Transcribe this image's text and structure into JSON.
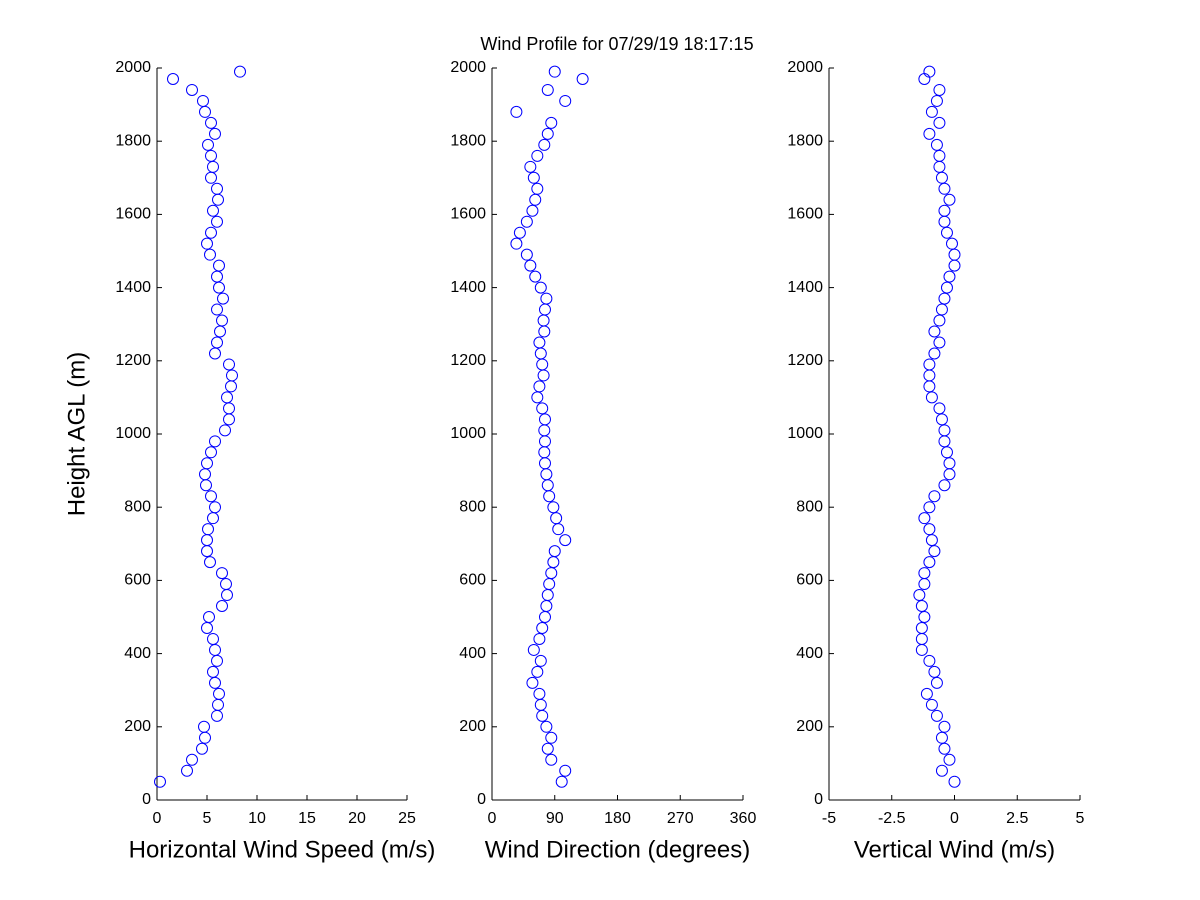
{
  "chart_data": [
    {
      "type": "scatter",
      "title": "Wind Profile for  07/29/19 18:17:15",
      "xlabel": "Horizontal Wind Speed (m/s)",
      "ylabel": "Height AGL (m)",
      "color": "#0000ff",
      "xlim": [
        0,
        25
      ],
      "xticks": [
        0,
        5,
        10,
        15,
        20,
        25
      ],
      "ylim": [
        0,
        2000
      ],
      "yticks": [
        0,
        200,
        400,
        600,
        800,
        1000,
        1200,
        1400,
        1600,
        1800,
        2000
      ],
      "x": [
        0.3,
        3.0,
        3.5,
        4.5,
        4.8,
        4.7,
        6.0,
        6.1,
        6.2,
        5.8,
        5.6,
        6.0,
        5.8,
        5.6,
        5.0,
        5.2,
        6.5,
        7.0,
        6.9,
        6.5,
        5.3,
        5.0,
        5.0,
        5.1,
        5.6,
        5.8,
        5.4,
        4.9,
        4.8,
        5.0,
        5.4,
        5.8,
        6.8,
        7.2,
        7.2,
        7.0,
        7.4,
        7.5,
        7.2,
        5.8,
        6.0,
        6.3,
        6.5,
        6.0,
        6.6,
        6.2,
        6.0,
        6.2,
        5.3,
        5.0,
        5.4,
        6.0,
        5.6,
        6.1,
        6.0,
        5.4,
        5.6,
        5.4,
        5.1,
        5.8,
        5.4,
        4.8,
        4.6,
        3.5,
        1.6,
        8.3
      ],
      "y": [
        50,
        80,
        110,
        140,
        170,
        200,
        230,
        260,
        290,
        320,
        350,
        380,
        410,
        440,
        470,
        500,
        530,
        560,
        590,
        620,
        650,
        680,
        710,
        740,
        770,
        800,
        830,
        860,
        890,
        920,
        950,
        980,
        1010,
        1040,
        1070,
        1100,
        1130,
        1160,
        1190,
        1220,
        1250,
        1280,
        1310,
        1340,
        1370,
        1400,
        1430,
        1460,
        1490,
        1520,
        1550,
        1580,
        1610,
        1640,
        1670,
        1700,
        1730,
        1760,
        1790,
        1820,
        1850,
        1880,
        1910,
        1940,
        1970,
        1990
      ]
    },
    {
      "type": "scatter",
      "xlabel": "Wind Direction (degrees)",
      "color": "#0000ff",
      "xlim": [
        0,
        360
      ],
      "xticks": [
        0,
        90,
        180,
        270,
        360
      ],
      "ylim": [
        0,
        2000
      ],
      "yticks": [
        0,
        200,
        400,
        600,
        800,
        1000,
        1200,
        1400,
        1600,
        1800,
        2000
      ],
      "x": [
        100,
        105,
        85,
        80,
        85,
        78,
        72,
        70,
        68,
        58,
        65,
        70,
        60,
        68,
        72,
        76,
        78,
        80,
        82,
        85,
        88,
        90,
        105,
        95,
        92,
        88,
        82,
        80,
        78,
        76,
        75,
        76,
        75,
        76,
        72,
        65,
        68,
        74,
        72,
        70,
        68,
        75,
        74,
        76,
        78,
        70,
        62,
        55,
        50,
        35,
        40,
        50,
        58,
        62,
        65,
        60,
        55,
        65,
        75,
        80,
        85,
        35,
        105,
        80,
        130,
        90
      ],
      "y": [
        50,
        80,
        110,
        140,
        170,
        200,
        230,
        260,
        290,
        320,
        350,
        380,
        410,
        440,
        470,
        500,
        530,
        560,
        590,
        620,
        650,
        680,
        710,
        740,
        770,
        800,
        830,
        860,
        890,
        920,
        950,
        980,
        1010,
        1040,
        1070,
        1100,
        1130,
        1160,
        1190,
        1220,
        1250,
        1280,
        1310,
        1340,
        1370,
        1400,
        1430,
        1460,
        1490,
        1520,
        1550,
        1580,
        1610,
        1640,
        1670,
        1700,
        1730,
        1760,
        1790,
        1820,
        1850,
        1880,
        1910,
        1940,
        1970,
        1990
      ]
    },
    {
      "type": "scatter",
      "xlabel": "Vertical Wind (m/s)",
      "color": "#0000ff",
      "xlim": [
        -5,
        5
      ],
      "xticks": [
        -5,
        -2.5,
        0,
        2.5,
        5
      ],
      "ylim": [
        0,
        2000
      ],
      "yticks": [
        0,
        200,
        400,
        600,
        800,
        1000,
        1200,
        1400,
        1600,
        1800,
        2000
      ],
      "x": [
        0,
        -0.5,
        -0.2,
        -0.4,
        -0.5,
        -0.4,
        -0.7,
        -0.9,
        -1.1,
        -0.7,
        -0.8,
        -1.0,
        -1.3,
        -1.3,
        -1.3,
        -1.2,
        -1.3,
        -1.4,
        -1.2,
        -1.2,
        -1.0,
        -0.8,
        -0.9,
        -1.0,
        -1.2,
        -1.0,
        -0.8,
        -0.4,
        -0.2,
        -0.2,
        -0.3,
        -0.4,
        -0.4,
        -0.5,
        -0.6,
        -0.9,
        -1.0,
        -1.0,
        -1.0,
        -0.8,
        -0.6,
        -0.8,
        -0.6,
        -0.5,
        -0.4,
        -0.3,
        -0.2,
        0,
        0,
        -0.1,
        -0.3,
        -0.4,
        -0.4,
        -0.2,
        -0.4,
        -0.5,
        -0.6,
        -0.6,
        -0.7,
        -1.0,
        -0.6,
        -0.9,
        -0.7,
        -0.6,
        -1.2,
        -1.0
      ],
      "y": [
        50,
        80,
        110,
        140,
        170,
        200,
        230,
        260,
        290,
        320,
        350,
        380,
        410,
        440,
        470,
        500,
        530,
        560,
        590,
        620,
        650,
        680,
        710,
        740,
        770,
        800,
        830,
        860,
        890,
        920,
        950,
        980,
        1010,
        1040,
        1070,
        1100,
        1130,
        1160,
        1190,
        1220,
        1250,
        1280,
        1310,
        1340,
        1370,
        1400,
        1430,
        1460,
        1490,
        1520,
        1550,
        1580,
        1610,
        1640,
        1670,
        1700,
        1730,
        1760,
        1790,
        1820,
        1850,
        1880,
        1910,
        1940,
        1970,
        1990
      ]
    }
  ]
}
